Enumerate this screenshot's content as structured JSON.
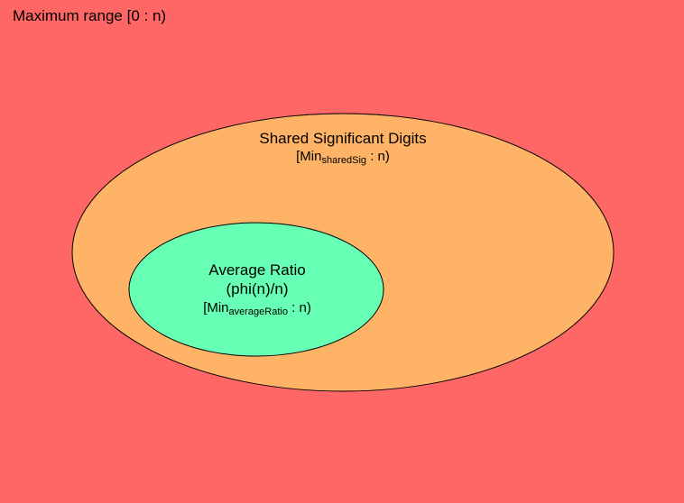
{
  "colors": {
    "background": "#ff6666",
    "outer_ellipse_fill": "#ffb366",
    "inner_ellipse_fill": "#66ffb3",
    "stroke": "#000000"
  },
  "outer_region": {
    "label": "Maximum range [0 : n)"
  },
  "shared_sig": {
    "title": "Shared Significant Digits",
    "range_prefix": "[Min",
    "range_sub": "sharedSig",
    "range_suffix": " : n)"
  },
  "average_ratio": {
    "title": "Average Ratio",
    "formula": "(phi(n)/n)",
    "range_prefix": "[Min",
    "range_sub": "averageRatio",
    "range_suffix": " : n)"
  }
}
